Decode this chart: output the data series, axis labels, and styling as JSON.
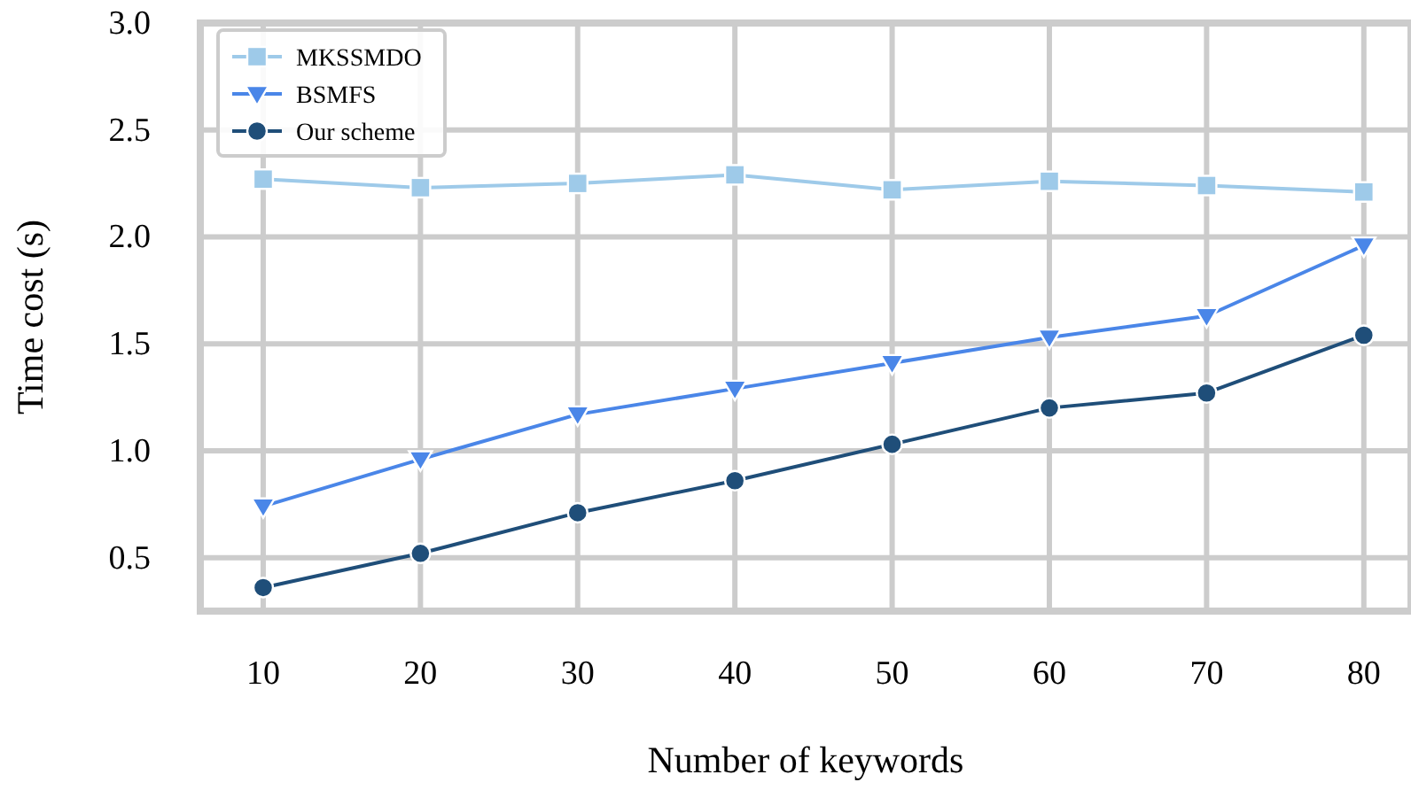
{
  "chart_data": {
    "type": "line",
    "xlabel": "Number of keywords",
    "ylabel": "Time cost (s)",
    "x": [
      10,
      20,
      30,
      40,
      50,
      60,
      70,
      80
    ],
    "xlim": [
      6,
      83
    ],
    "xticks": [
      10,
      20,
      30,
      40,
      50,
      60,
      70,
      80
    ],
    "ylim": [
      0.25,
      3.0
    ],
    "yticks": [
      {
        "value": 0.5,
        "label": "0.5"
      },
      {
        "value": 1.0,
        "label": "1.0"
      },
      {
        "value": 1.5,
        "label": "1.5"
      },
      {
        "value": 2.0,
        "label": "2.0"
      },
      {
        "value": 2.5,
        "label": "2.5"
      },
      {
        "value": 3.0,
        "label": "3.0"
      }
    ],
    "grid": true,
    "legend": "top left",
    "line_style": "solid",
    "series": [
      {
        "name": "MKSSMDO",
        "color": "#9ecae9",
        "marker": "square",
        "values": [
          2.27,
          2.23,
          2.25,
          2.29,
          2.22,
          2.26,
          2.24,
          2.21
        ]
      },
      {
        "name": "BSMFS",
        "color": "#4a86e8",
        "marker": "triangle",
        "values": [
          0.74,
          0.96,
          1.17,
          1.29,
          1.41,
          1.53,
          1.63,
          1.96
        ]
      },
      {
        "name": "Our scheme",
        "color": "#1f4e79",
        "marker": "circle",
        "values": [
          0.36,
          0.52,
          0.71,
          0.86,
          1.03,
          1.2,
          1.27,
          1.54
        ]
      }
    ]
  }
}
